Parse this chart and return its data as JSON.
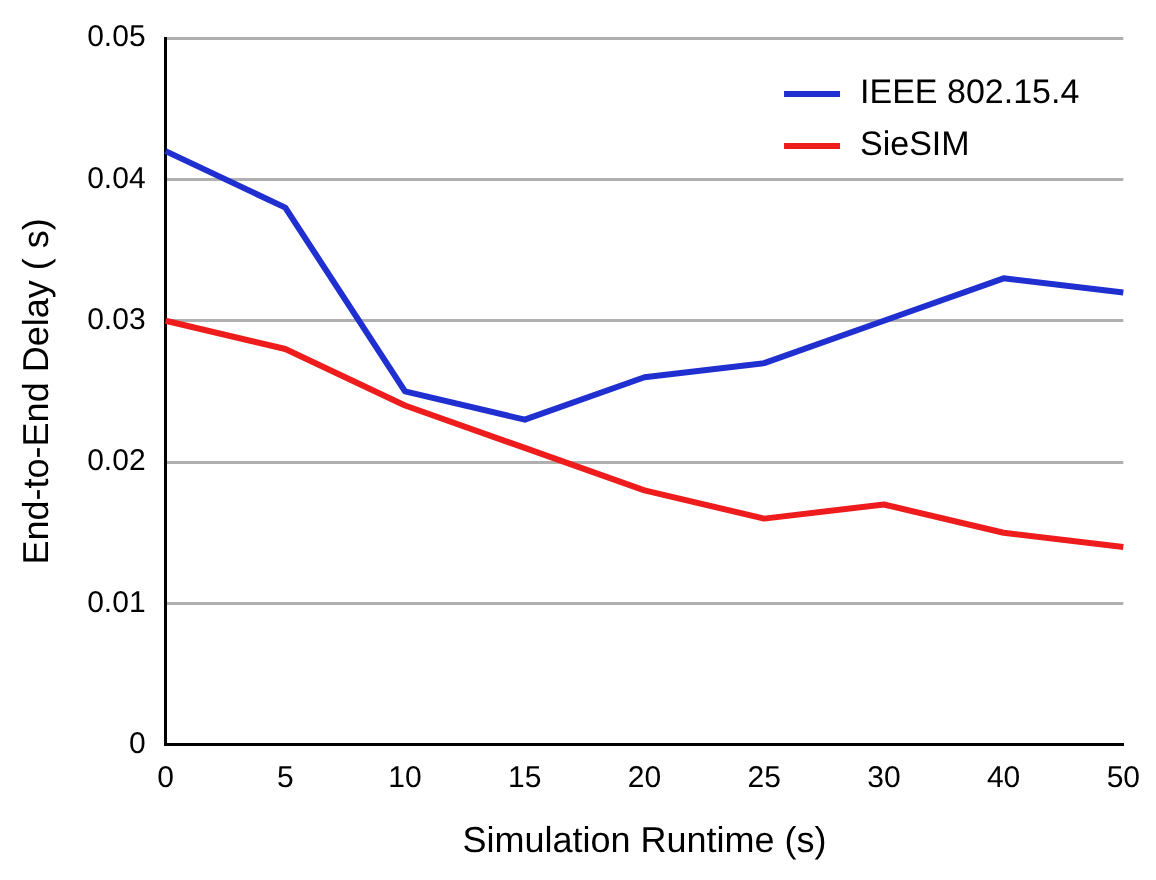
{
  "chart_data": {
    "type": "line",
    "xlabel": "Simulation Runtime (s)",
    "ylabel": "End-to-End Delay ( s)",
    "categories": [
      "0",
      "5",
      "10",
      "15",
      "20",
      "25",
      "30",
      "40",
      "50"
    ],
    "series": [
      {
        "name": "IEEE 802.15.4",
        "color": "#1f2fd0",
        "values": [
          0.042,
          0.038,
          0.025,
          0.023,
          0.026,
          0.027,
          0.03,
          0.033,
          0.032
        ]
      },
      {
        "name": "SieSIM",
        "color": "#ee1c1c",
        "values": [
          0.03,
          0.028,
          0.024,
          0.021,
          0.018,
          0.016,
          0.017,
          0.015,
          0.014
        ]
      }
    ],
    "ylim": [
      0,
      0.05
    ],
    "yticks": [
      0,
      0.01,
      0.02,
      0.03,
      0.04,
      0.05
    ],
    "grid": "y",
    "legend": "top right",
    "marker": "none",
    "line_style": "solid"
  }
}
